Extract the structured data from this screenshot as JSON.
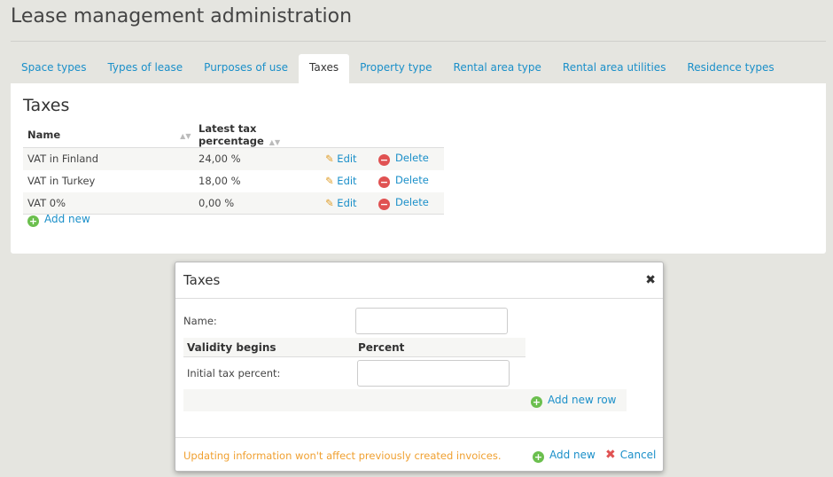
{
  "page": {
    "title": "Lease management administration"
  },
  "tabs": [
    {
      "label": "Space types"
    },
    {
      "label": "Types of lease"
    },
    {
      "label": "Purposes of use"
    },
    {
      "label": "Taxes",
      "active": true
    },
    {
      "label": "Property type"
    },
    {
      "label": "Rental area type"
    },
    {
      "label": "Rental area utilities"
    },
    {
      "label": "Residence types"
    }
  ],
  "panel": {
    "title": "Taxes",
    "columns": [
      "Name",
      "Latest tax percentage"
    ],
    "rows": [
      {
        "name": "VAT in Finland",
        "percent": "24,00 %"
      },
      {
        "name": "VAT in Turkey",
        "percent": "18,00 %"
      },
      {
        "name": "VAT 0%",
        "percent": "0,00 %"
      }
    ],
    "edit_label": "Edit",
    "delete_label": "Delete",
    "add_new": "Add new"
  },
  "modal": {
    "title": "Taxes",
    "name_label": "Name:",
    "name_value": "",
    "col_validity": "Validity begins",
    "col_percent": "Percent",
    "initial_label": "Initial tax percent:",
    "initial_value": "",
    "add_row": "Add new row",
    "warning": "Updating information won't affect previously created invoices.",
    "add_new": "Add new",
    "cancel": "Cancel"
  },
  "colors": {
    "link": "#1a8fc9",
    "warning": "#f0a030",
    "add": "#6bbf4e",
    "delete": "#e05252"
  }
}
